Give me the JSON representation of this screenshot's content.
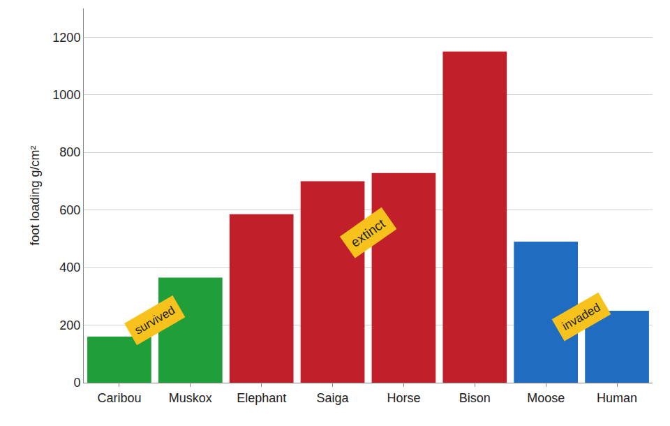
{
  "chart_data": {
    "type": "bar",
    "y_label": "foot loading g/cm²",
    "categories": [
      "Caribou",
      "Muskox",
      "Elephant",
      "Saiga",
      "Horse",
      "Bison",
      "Moose",
      "Human"
    ],
    "values": [
      160,
      365,
      585,
      700,
      728,
      1150,
      490,
      250
    ],
    "colors": [
      "#1f9e3a",
      "#1f9e3a",
      "#c11f2a",
      "#c11f2a",
      "#c11f2a",
      "#c11f2a",
      "#1f6cc0",
      "#1f6cc0"
    ],
    "ylim": [
      0,
      1300
    ],
    "yticks": [
      0,
      200,
      400,
      600,
      800,
      1000,
      1200
    ],
    "grid": true,
    "data_labels": false,
    "annotations": [
      {
        "text": "survived",
        "categories": [
          "Caribou",
          "Muskox"
        ]
      },
      {
        "text": "extinct",
        "categories": [
          "Elephant",
          "Saiga",
          "Horse",
          "Bison"
        ]
      },
      {
        "text": "invaded",
        "categories": [
          "Moose",
          "Human"
        ]
      }
    ]
  }
}
